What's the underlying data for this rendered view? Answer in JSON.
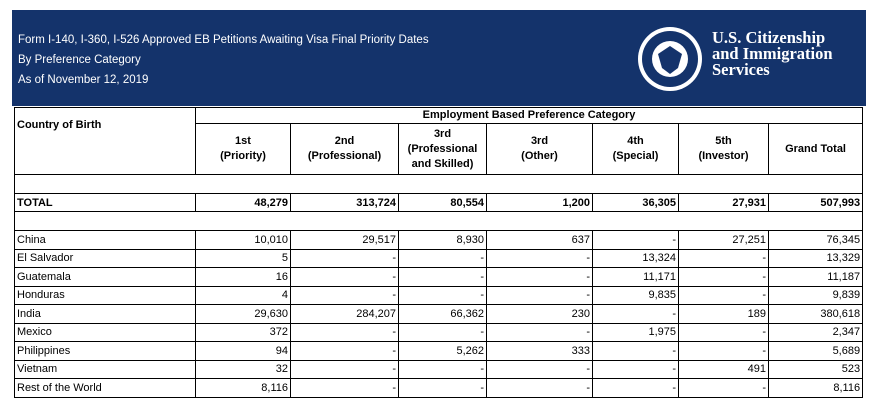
{
  "header": {
    "title_lines": [
      "Form I-140, I-360, I-526 Approved EB Petitions Awaiting Visa Final Priority Dates",
      "By Preference Category",
      "As of November 12, 2019"
    ],
    "agency_lines": [
      "U.S. Citizenship",
      "and Immigration",
      "Services"
    ]
  },
  "table": {
    "group_header": "Employment Based Preference Category",
    "first_column": "Country of Birth",
    "columns": [
      [
        "1st",
        "(Priority)"
      ],
      [
        "2nd",
        "(Professional)"
      ],
      [
        "3rd",
        "(Professional",
        "and Skilled)"
      ],
      [
        "3rd",
        "(Other)"
      ],
      [
        "4th",
        "(Special)"
      ],
      [
        "5th",
        "(Investor)"
      ],
      [
        "Grand Total"
      ]
    ],
    "total": [
      "TOTAL",
      "48,279",
      "313,724",
      "80,554",
      "1,200",
      "36,305",
      "27,931",
      "507,993"
    ],
    "rows": [
      [
        "China",
        "10,010",
        "29,517",
        "8,930",
        "637",
        "-",
        "27,251",
        "76,345"
      ],
      [
        "El Salvador",
        "5",
        "-",
        "-",
        "-",
        "13,324",
        "-",
        "13,329"
      ],
      [
        "Guatemala",
        "16",
        "-",
        "-",
        "-",
        "11,171",
        "-",
        "11,187"
      ],
      [
        "Honduras",
        "4",
        "-",
        "-",
        "-",
        "9,835",
        "-",
        "9,839"
      ],
      [
        "India",
        "29,630",
        "284,207",
        "66,362",
        "230",
        "-",
        "189",
        "380,618"
      ],
      [
        "Mexico",
        "372",
        "-",
        "-",
        "-",
        "1,975",
        "-",
        "2,347"
      ],
      [
        "Philippines",
        "94",
        "-",
        "5,262",
        "333",
        "-",
        "-",
        "5,689"
      ],
      [
        "Vietnam",
        "32",
        "-",
        "-",
        "-",
        "-",
        "491",
        "523"
      ],
      [
        "Rest of the World",
        "8,116",
        "-",
        "-",
        "-",
        "-",
        "-",
        "8,116"
      ]
    ]
  }
}
